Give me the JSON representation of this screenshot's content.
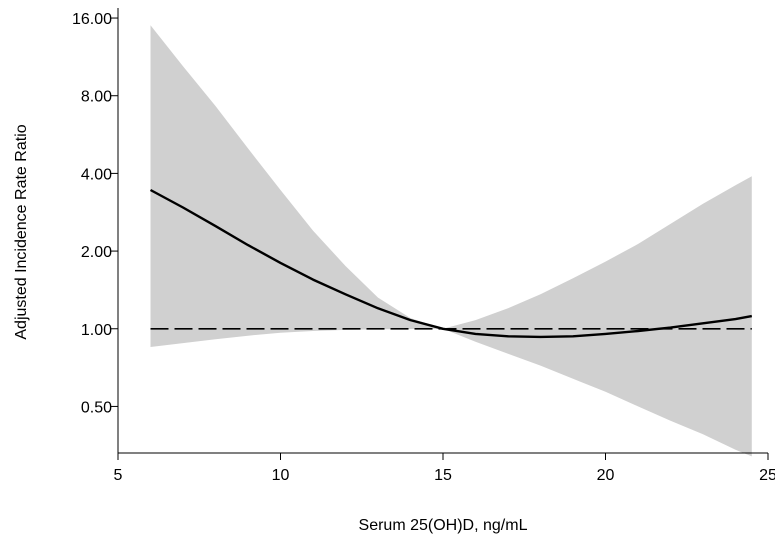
{
  "chart_data": {
    "type": "line",
    "title": "",
    "xlabel": "Serum 25(OH)D, ng/mL",
    "ylabel": "Adjusted Incidence Rate Ratio",
    "xlim": [
      5,
      25
    ],
    "ylim": [
      0.33,
      17.5
    ],
    "yscale": "log2",
    "grid": false,
    "legend": "none",
    "x_ticks": [
      5,
      10,
      15,
      20,
      25
    ],
    "x_tick_labels": [
      "5",
      "10",
      "15",
      "20",
      "25"
    ],
    "y_ticks": [
      0.5,
      1,
      2,
      4,
      8,
      16
    ],
    "y_tick_labels": [
      "0.50",
      "1.00",
      "2.00",
      "4.00",
      "8.00",
      "16.00"
    ],
    "colors": {
      "estimate": "#000000",
      "confidence_band": "#d0d0d0",
      "reference": "#000000"
    },
    "series": [
      {
        "role": "estimate",
        "style": "solid",
        "x": [
          6.0,
          7.0,
          8.0,
          9.0,
          10.0,
          11.0,
          12.0,
          13.0,
          14.0,
          15.0,
          16.0,
          17.0,
          18.0,
          19.0,
          20.0,
          21.0,
          22.0,
          23.0,
          24.0,
          24.5
        ],
        "y": [
          3.45,
          2.95,
          2.5,
          2.11,
          1.8,
          1.55,
          1.36,
          1.2,
          1.08,
          1.0,
          0.955,
          0.935,
          0.93,
          0.935,
          0.955,
          0.98,
          1.01,
          1.05,
          1.09,
          1.12
        ]
      },
      {
        "role": "reference",
        "style": "dashed",
        "x": [
          6.0,
          24.5
        ],
        "y": [
          1.0,
          1.0
        ]
      }
    ],
    "band": {
      "role": "confidence_band",
      "x": [
        6.0,
        7.0,
        8.0,
        9.0,
        10.0,
        11.0,
        12.0,
        13.0,
        14.0,
        15.0,
        16.0,
        17.0,
        18.0,
        19.0,
        20.0,
        21.0,
        22.0,
        23.0,
        24.0,
        24.5
      ],
      "lower": [
        0.85,
        0.88,
        0.91,
        0.94,
        0.965,
        0.98,
        0.99,
        0.995,
        0.998,
        1.0,
        0.89,
        0.8,
        0.72,
        0.64,
        0.57,
        0.5,
        0.44,
        0.39,
        0.34,
        0.32
      ],
      "upper": [
        15.0,
        10.4,
        7.3,
        5.0,
        3.45,
        2.4,
        1.75,
        1.32,
        1.1,
        1.0,
        1.08,
        1.2,
        1.36,
        1.57,
        1.82,
        2.13,
        2.55,
        3.05,
        3.6,
        3.9
      ]
    }
  }
}
